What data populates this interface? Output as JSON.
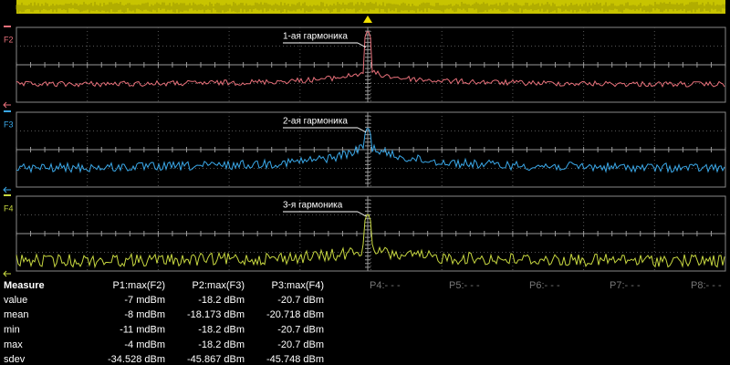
{
  "traces": [
    {
      "label": "F2",
      "color": "#e8707a",
      "annotation": "1-ая гармоника"
    },
    {
      "label": "F3",
      "color": "#3aa8e8",
      "annotation": "2-ая гармоника"
    },
    {
      "label": "F4",
      "color": "#c8d840",
      "annotation": "3-я гармоника"
    }
  ],
  "measure": {
    "title": "Measure",
    "columns": [
      "P1:max(F2)",
      "P2:max(F3)",
      "P3:max(F4)"
    ],
    "rows": [
      {
        "label": "value",
        "cells": [
          "-7 mdBm",
          "-18.2 dBm",
          "-20.7 dBm"
        ]
      },
      {
        "label": "mean",
        "cells": [
          "-8 mdBm",
          "-18.173 dBm",
          "-20.718 dBm"
        ]
      },
      {
        "label": "min",
        "cells": [
          "-11 mdBm",
          "-18.2 dBm",
          "-20.7 dBm"
        ]
      },
      {
        "label": "max",
        "cells": [
          "-4 mdBm",
          "-18.2 dBm",
          "-20.7 dBm"
        ]
      },
      {
        "label": "sdev",
        "cells": [
          "-34.528 dBm",
          "-45.867 dBm",
          "-45.748 dBm"
        ]
      }
    ],
    "empty_params": [
      "P4:- - -",
      "P5:- - -",
      "P6:- - -",
      "P7:- - -",
      "P8:- - -"
    ]
  }
}
